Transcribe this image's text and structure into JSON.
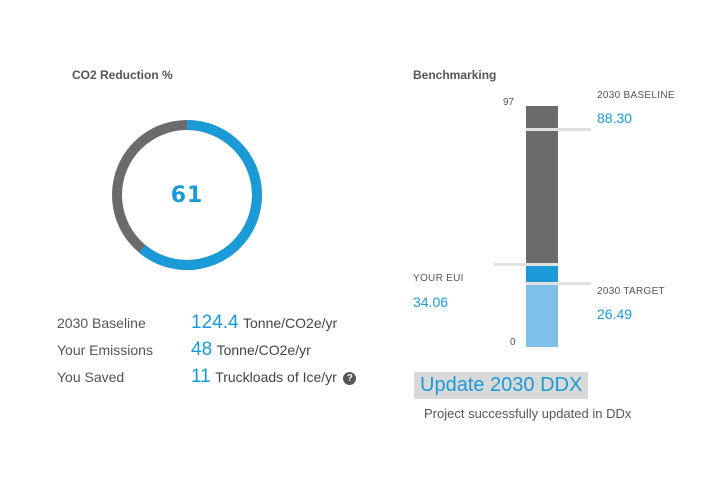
{
  "co2": {
    "title": "CO2 Reduction %",
    "percent_value": "61",
    "percent_fraction": 0.61,
    "colors": {
      "reduced": "#1a9bd7",
      "remaining": "#6b6b6b"
    }
  },
  "stats": [
    {
      "label": "2030 Baseline",
      "value": "124.4",
      "unit": "Tonne/CO2e/yr"
    },
    {
      "label": "Your Emissions",
      "value": "48",
      "unit": "Tonne/CO2e/yr"
    },
    {
      "label": "You Saved",
      "value": "11",
      "unit": "Truckloads of Ice/yr",
      "help_icon": "question-circle-icon",
      "help_glyph": "?"
    }
  ],
  "benchmark": {
    "title": "Benchmarking",
    "axis_max": "97",
    "axis_min": "0",
    "baseline_label": "2030 BASELINE",
    "baseline_value": "88.30",
    "eui_label": "YOUR EUI",
    "eui_value": "34.06",
    "target_label": "2030 TARGET",
    "target_value": "26.49",
    "colors": {
      "above": "#6b6b6b",
      "eui": "#1a9bd7",
      "below": "#7fc0e8"
    }
  },
  "actions": {
    "update_label": "Update 2030 DDX",
    "status_message": "Project successfully updated in DDx"
  }
}
